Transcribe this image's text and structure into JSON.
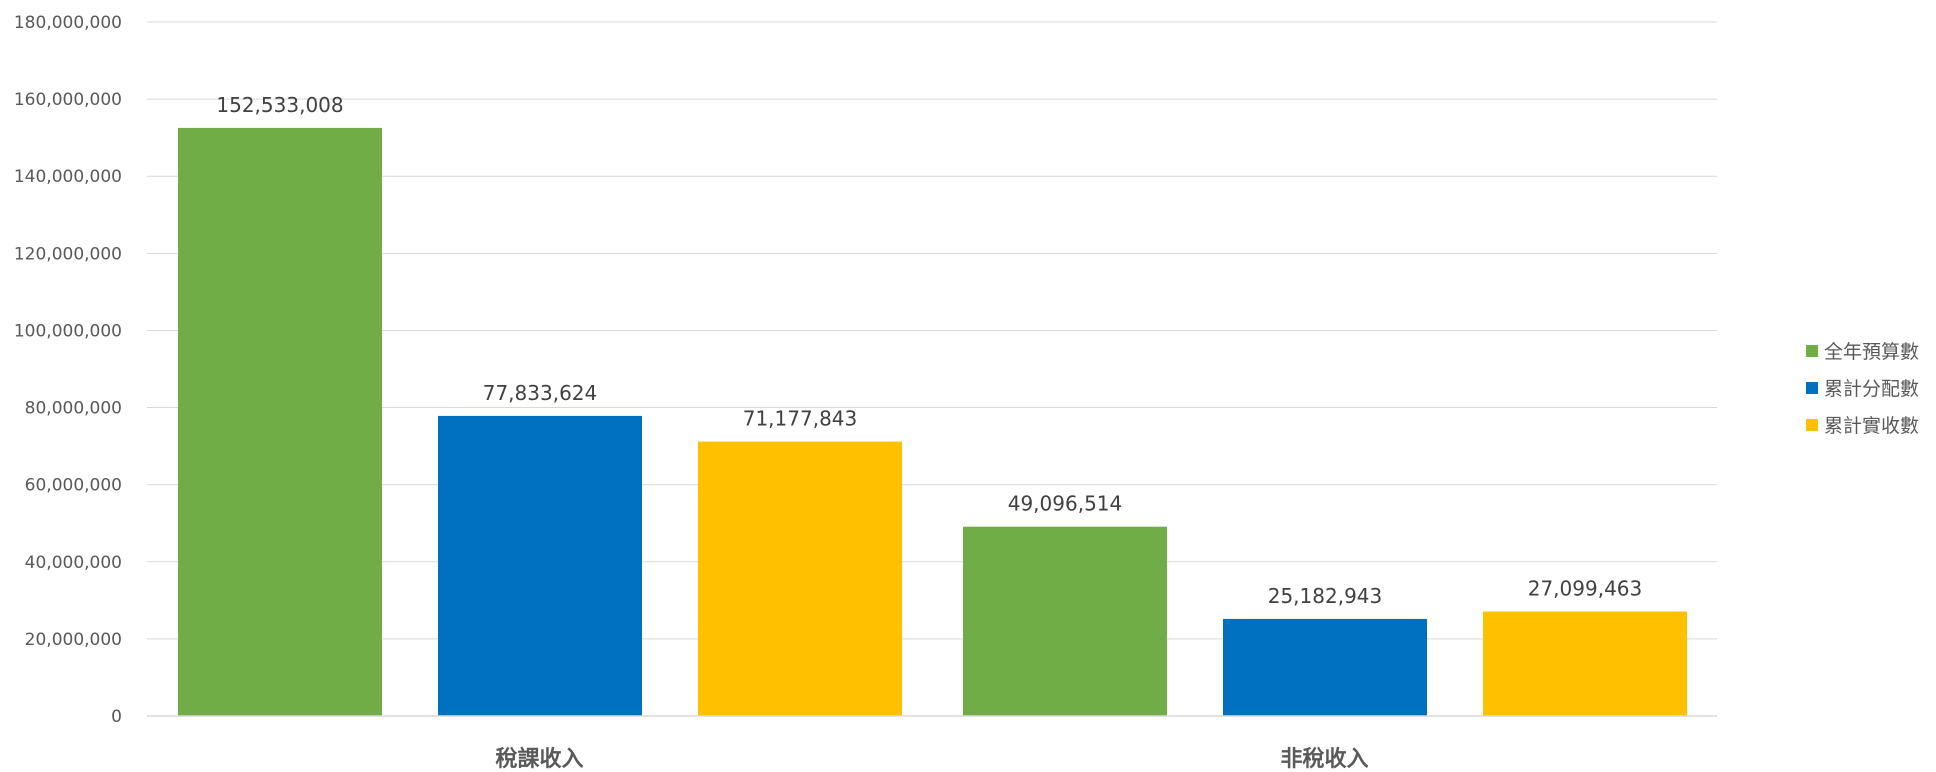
{
  "colors": {
    "background": "#ffffff",
    "gridline": "#d9d9d9",
    "axis_text": "#595959",
    "label_text": "#404040"
  },
  "chart_data": {
    "type": "bar",
    "categories": [
      "稅課收入",
      "非稅收入"
    ],
    "series": [
      {
        "name": "全年預算數",
        "color": "#70ad47",
        "values": [
          152533008,
          49096514
        ],
        "labels": [
          "152,533,008",
          "49,096,514"
        ]
      },
      {
        "name": "累計分配數",
        "color": "#0070c0",
        "values": [
          77833624,
          25182943
        ],
        "labels": [
          "77,833,624",
          "25,182,943"
        ]
      },
      {
        "name": "累計實收數",
        "color": "#ffc000",
        "values": [
          71177843,
          27099463
        ],
        "labels": [
          "71,177,843",
          "27,099,463"
        ]
      }
    ],
    "y_ticks": [
      {
        "value": 0,
        "label": "0"
      },
      {
        "value": 20000000,
        "label": "20,000,000"
      },
      {
        "value": 40000000,
        "label": "40,000,000"
      },
      {
        "value": 60000000,
        "label": "60,000,000"
      },
      {
        "value": 80000000,
        "label": "80,000,000"
      },
      {
        "value": 100000000,
        "label": "100,000,000"
      },
      {
        "value": 120000000,
        "label": "120,000,000"
      },
      {
        "value": 140000000,
        "label": "140,000,000"
      },
      {
        "value": 160000000,
        "label": "160,000,000"
      },
      {
        "value": 180000000,
        "label": "180,000,000"
      }
    ],
    "ylim": [
      0,
      180000000
    ],
    "grid": true,
    "legend_position": "right",
    "title": "",
    "xlabel": "",
    "ylabel": ""
  }
}
